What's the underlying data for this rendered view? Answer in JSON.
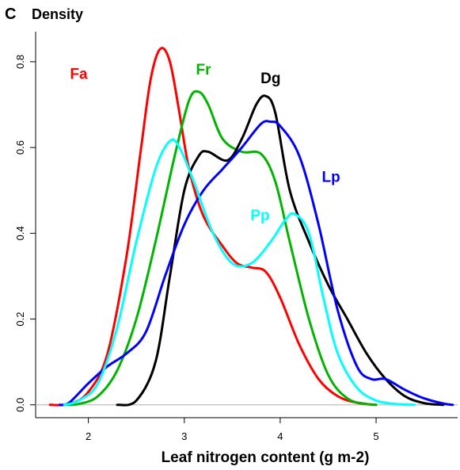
{
  "panel_letter": "C",
  "chart_data": {
    "type": "line",
    "title": "",
    "ylabel": "Density",
    "xlabel": "Leaf nitrogen content (g m-2)",
    "xlim": [
      1.45,
      5.85
    ],
    "ylim": [
      -0.03,
      0.87
    ],
    "xticks": [
      2,
      3,
      4,
      5
    ],
    "yticks": [
      0.0,
      0.2,
      0.4,
      0.6,
      0.8
    ],
    "xtick_labels": [
      "2",
      "3",
      "4",
      "5"
    ],
    "ytick_labels": [
      "0.0",
      "0.2",
      "0.4",
      "0.6",
      "0.8"
    ],
    "baseline": 0,
    "grid": false,
    "legend": "none",
    "series": [
      {
        "name": "Fa",
        "color": "#ff0000",
        "label_at": [
          1.9,
          0.76
        ],
        "points": [
          [
            1.6,
            0
          ],
          [
            1.8,
            0.002
          ],
          [
            2.0,
            0.03
          ],
          [
            2.2,
            0.12
          ],
          [
            2.4,
            0.35
          ],
          [
            2.55,
            0.6
          ],
          [
            2.65,
            0.76
          ],
          [
            2.75,
            0.83
          ],
          [
            2.85,
            0.8
          ],
          [
            2.95,
            0.68
          ],
          [
            3.05,
            0.55
          ],
          [
            3.2,
            0.44
          ],
          [
            3.4,
            0.37
          ],
          [
            3.55,
            0.33
          ],
          [
            3.7,
            0.32
          ],
          [
            3.85,
            0.31
          ],
          [
            4.0,
            0.25
          ],
          [
            4.2,
            0.14
          ],
          [
            4.4,
            0.06
          ],
          [
            4.6,
            0.02
          ],
          [
            4.8,
            0.005
          ],
          [
            5.0,
            0
          ]
        ]
      },
      {
        "name": "Fr",
        "color": "#00b400",
        "label_at": [
          3.2,
          0.77
        ],
        "points": [
          [
            1.75,
            0
          ],
          [
            1.9,
            0.002
          ],
          [
            2.1,
            0.02
          ],
          [
            2.3,
            0.08
          ],
          [
            2.5,
            0.2
          ],
          [
            2.7,
            0.38
          ],
          [
            2.9,
            0.58
          ],
          [
            3.05,
            0.71
          ],
          [
            3.15,
            0.73
          ],
          [
            3.25,
            0.7
          ],
          [
            3.4,
            0.62
          ],
          [
            3.6,
            0.59
          ],
          [
            3.8,
            0.585
          ],
          [
            3.95,
            0.52
          ],
          [
            4.1,
            0.38
          ],
          [
            4.3,
            0.2
          ],
          [
            4.5,
            0.07
          ],
          [
            4.7,
            0.015
          ],
          [
            4.9,
            0.002
          ],
          [
            5.0,
            0
          ]
        ]
      },
      {
        "name": "Dg",
        "color": "#000000",
        "label_at": [
          3.9,
          0.75
        ],
        "points": [
          [
            2.3,
            0
          ],
          [
            2.5,
            0.01
          ],
          [
            2.7,
            0.1
          ],
          [
            2.85,
            0.3
          ],
          [
            3.0,
            0.5
          ],
          [
            3.15,
            0.58
          ],
          [
            3.25,
            0.59
          ],
          [
            3.45,
            0.57
          ],
          [
            3.6,
            0.62
          ],
          [
            3.75,
            0.7
          ],
          [
            3.85,
            0.72
          ],
          [
            3.95,
            0.68
          ],
          [
            4.1,
            0.5
          ],
          [
            4.3,
            0.38
          ],
          [
            4.5,
            0.28
          ],
          [
            4.7,
            0.2
          ],
          [
            4.9,
            0.12
          ],
          [
            5.1,
            0.06
          ],
          [
            5.3,
            0.02
          ],
          [
            5.5,
            0.004
          ],
          [
            5.7,
            0
          ]
        ]
      },
      {
        "name": "Lp",
        "color": "#0000ff",
        "label_at": [
          4.53,
          0.52
        ],
        "points": [
          [
            1.7,
            0
          ],
          [
            1.8,
            0.005
          ],
          [
            2.0,
            0.05
          ],
          [
            2.2,
            0.09
          ],
          [
            2.4,
            0.12
          ],
          [
            2.6,
            0.17
          ],
          [
            2.8,
            0.3
          ],
          [
            3.0,
            0.42
          ],
          [
            3.2,
            0.5
          ],
          [
            3.4,
            0.55
          ],
          [
            3.6,
            0.6
          ],
          [
            3.8,
            0.655
          ],
          [
            3.9,
            0.66
          ],
          [
            4.0,
            0.65
          ],
          [
            4.2,
            0.58
          ],
          [
            4.4,
            0.42
          ],
          [
            4.6,
            0.22
          ],
          [
            4.8,
            0.09
          ],
          [
            4.95,
            0.06
          ],
          [
            5.1,
            0.06
          ],
          [
            5.3,
            0.035
          ],
          [
            5.5,
            0.015
          ],
          [
            5.7,
            0.003
          ],
          [
            5.8,
            0
          ]
        ]
      },
      {
        "name": "Pp",
        "color": "#00ffff",
        "label_at": [
          3.79,
          0.43
        ],
        "points": [
          [
            1.75,
            0
          ],
          [
            1.9,
            0.01
          ],
          [
            2.1,
            0.05
          ],
          [
            2.3,
            0.18
          ],
          [
            2.5,
            0.38
          ],
          [
            2.7,
            0.55
          ],
          [
            2.85,
            0.615
          ],
          [
            2.95,
            0.6
          ],
          [
            3.1,
            0.52
          ],
          [
            3.3,
            0.4
          ],
          [
            3.5,
            0.33
          ],
          [
            3.7,
            0.33
          ],
          [
            3.9,
            0.38
          ],
          [
            4.05,
            0.43
          ],
          [
            4.15,
            0.445
          ],
          [
            4.3,
            0.4
          ],
          [
            4.45,
            0.25
          ],
          [
            4.6,
            0.12
          ],
          [
            4.8,
            0.04
          ],
          [
            5.0,
            0.01
          ],
          [
            5.2,
            0.002
          ],
          [
            5.4,
            0
          ]
        ]
      }
    ]
  }
}
